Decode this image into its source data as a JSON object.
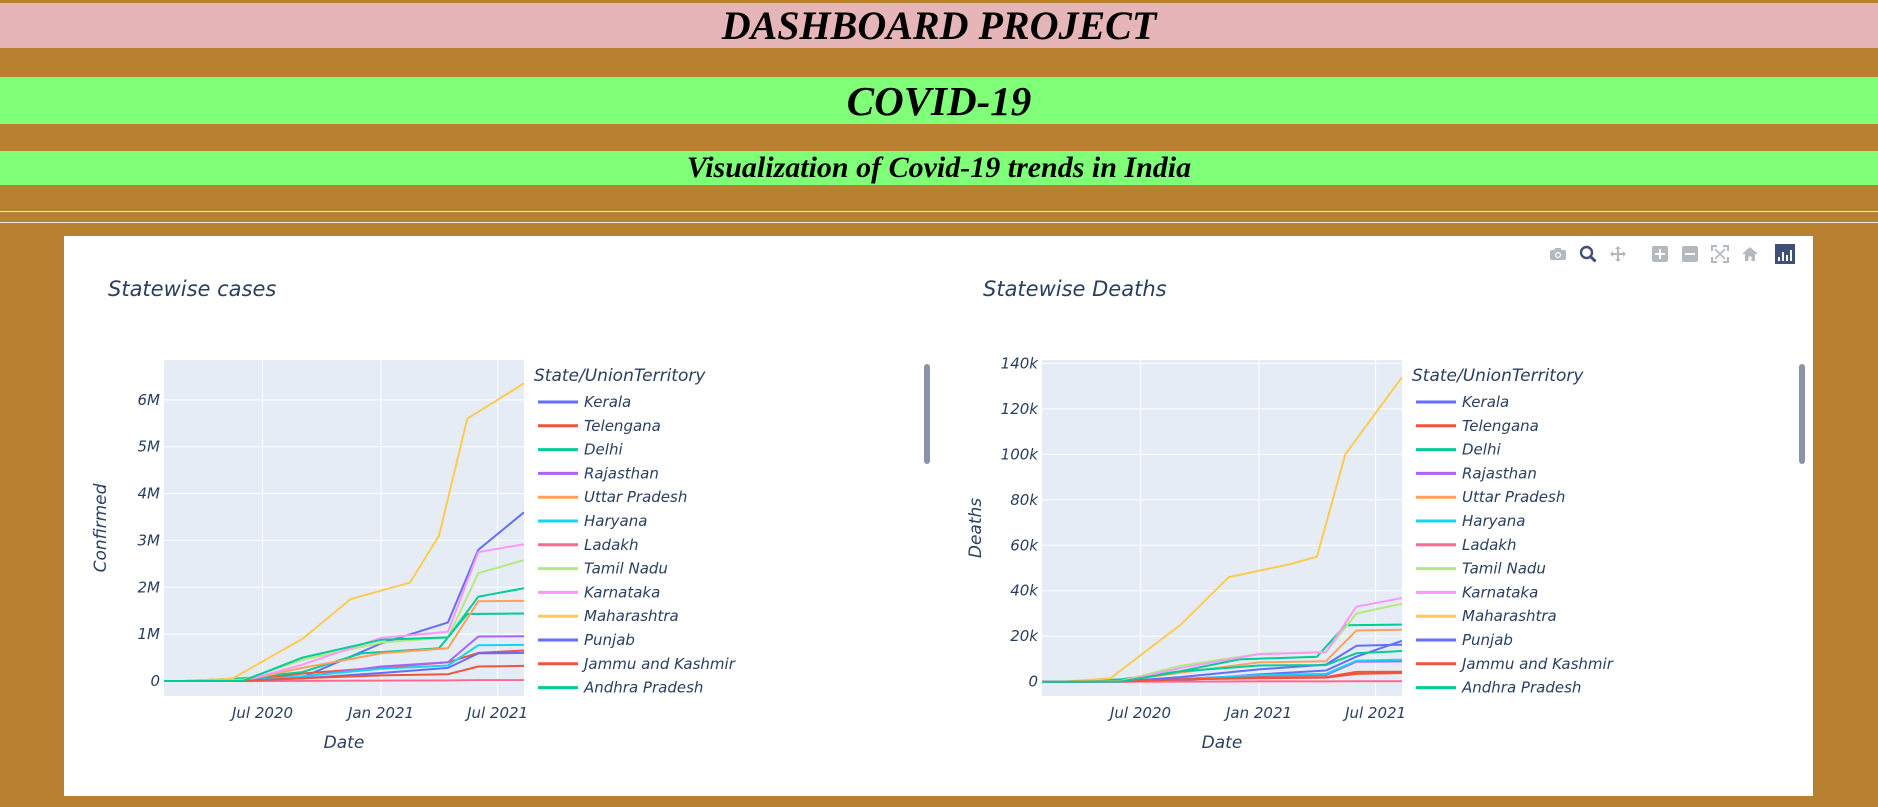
{
  "header": {
    "title": "DASHBOARD PROJECT",
    "covid": "COVID-19",
    "subtitle": "Visualization of Covid-19 trends in India"
  },
  "modebar": {
    "icons": [
      "camera-icon",
      "zoom-icon",
      "pan-icon",
      "zoom-in-icon",
      "zoom-out-icon",
      "autoscale-icon",
      "reset-home-icon",
      "plotly-logo-icon"
    ],
    "colors": {
      "inactive": "#b4b9c0",
      "active": "#3f4f75"
    }
  },
  "legend_colors": [
    "#636efa",
    "#ef553b",
    "#00cc96",
    "#ab63fa",
    "#ffa15a",
    "#19d3f3",
    "#ff6692",
    "#b6e880",
    "#ff97ff",
    "#fecb52",
    "#636efa",
    "#ef553b",
    "#00cc96"
  ],
  "chart_data": [
    {
      "type": "line",
      "title": "Statewise cases",
      "xlabel": "Date",
      "ylabel": "Confirmed",
      "x_ticks": [
        "Jul 2020",
        "Jan 2021",
        "Jul 2021"
      ],
      "y_ticks": [
        "0",
        "1M",
        "2M",
        "3M",
        "4M",
        "5M",
        "6M"
      ],
      "xlim": [
        "2020-01-30",
        "2021-08-11"
      ],
      "ylim": [
        -320000,
        6850000
      ],
      "legend_title": "State/UnionTerritory",
      "legend_placement": "right",
      "grid": true,
      "series": [
        {
          "name": "Kerala",
          "x": [
            "2020-01-30",
            "2020-06-01",
            "2020-09-01",
            "2021-01-01",
            "2021-04-15",
            "2021-06-01",
            "2021-08-11"
          ],
          "y": [
            1,
            2000,
            80000,
            800000,
            1250000,
            2800000,
            3600000
          ]
        },
        {
          "name": "Telengana",
          "x": [
            "2020-03-01",
            "2020-06-01",
            "2020-09-01",
            "2021-01-01",
            "2021-04-15",
            "2021-06-01",
            "2021-08-11"
          ],
          "y": [
            0,
            5000,
            160000,
            285000,
            400000,
            600000,
            650000
          ]
        },
        {
          "name": "Delhi",
          "x": [
            "2020-03-01",
            "2020-06-01",
            "2020-09-01",
            "2020-12-01",
            "2021-04-01",
            "2021-05-15",
            "2021-08-11"
          ],
          "y": [
            0,
            60000,
            190000,
            590000,
            700000,
            1430000,
            1440000
          ]
        },
        {
          "name": "Rajasthan",
          "x": [
            "2020-03-01",
            "2020-06-01",
            "2020-09-01",
            "2021-01-01",
            "2021-04-15",
            "2021-06-01",
            "2021-08-11"
          ],
          "y": [
            0,
            10000,
            90000,
            310000,
            400000,
            950000,
            955000
          ]
        },
        {
          "name": "Uttar Pradesh",
          "x": [
            "2020-03-01",
            "2020-06-01",
            "2020-09-01",
            "2021-01-01",
            "2021-04-15",
            "2021-06-01",
            "2021-08-11"
          ],
          "y": [
            0,
            12000,
            280000,
            590000,
            700000,
            1700000,
            1710000
          ]
        },
        {
          "name": "Haryana",
          "x": [
            "2020-03-01",
            "2020-06-01",
            "2020-09-01",
            "2021-01-01",
            "2021-04-15",
            "2021-06-01",
            "2021-08-11"
          ],
          "y": [
            0,
            6000,
            100000,
            260000,
            330000,
            765000,
            770000
          ]
        },
        {
          "name": "Ladakh",
          "x": [
            "2020-03-01",
            "2020-06-01",
            "2020-09-01",
            "2021-01-01",
            "2021-04-15",
            "2021-06-01",
            "2021-08-11"
          ],
          "y": [
            0,
            500,
            3000,
            9500,
            11000,
            19500,
            20300
          ]
        },
        {
          "name": "Tamil Nadu",
          "x": [
            "2020-03-01",
            "2020-06-01",
            "2020-09-01",
            "2021-01-01",
            "2021-04-15",
            "2021-06-01",
            "2021-08-11"
          ],
          "y": [
            0,
            25000,
            450000,
            820000,
            930000,
            2300000,
            2580000
          ]
        },
        {
          "name": "Karnataka",
          "x": [
            "2020-03-01",
            "2020-06-01",
            "2020-09-01",
            "2021-01-01",
            "2021-04-15",
            "2021-06-01",
            "2021-08-11"
          ],
          "y": [
            0,
            5000,
            350000,
            920000,
            1050000,
            2750000,
            2920000
          ]
        },
        {
          "name": "Maharashtra",
          "x": [
            "2020-03-01",
            "2020-05-15",
            "2020-09-01",
            "2020-11-15",
            "2021-02-15",
            "2021-04-01",
            "2021-05-15",
            "2021-08-11"
          ],
          "y": [
            0,
            50000,
            900000,
            1750000,
            2100000,
            3100000,
            5600000,
            6350000
          ]
        },
        {
          "name": "Punjab",
          "x": [
            "2020-03-01",
            "2020-06-01",
            "2020-09-01",
            "2021-01-01",
            "2021-04-15",
            "2021-06-01",
            "2021-08-11"
          ],
          "y": [
            0,
            3000,
            60000,
            170000,
            280000,
            590000,
            600000
          ]
        },
        {
          "name": "Jammu and Kashmir",
          "x": [
            "2020-03-01",
            "2020-06-01",
            "2020-09-01",
            "2021-01-01",
            "2021-04-15",
            "2021-06-01",
            "2021-08-11"
          ],
          "y": [
            0,
            3000,
            60000,
            120000,
            145000,
            310000,
            322000
          ]
        },
        {
          "name": "Andhra Pradesh",
          "x": [
            "2020-03-01",
            "2020-06-01",
            "2020-09-01",
            "2021-01-01",
            "2021-04-15",
            "2021-06-01",
            "2021-08-11"
          ],
          "y": [
            0,
            5000,
            500000,
            880000,
            930000,
            1800000,
            1980000
          ]
        }
      ]
    },
    {
      "type": "line",
      "title": "Statewise Deaths",
      "xlabel": "Date",
      "ylabel": "Deaths",
      "x_ticks": [
        "Jul 2020",
        "Jan 2021",
        "Jul 2021"
      ],
      "y_ticks": [
        "0",
        "20k",
        "40k",
        "60k",
        "80k",
        "100k",
        "120k",
        "140k"
      ],
      "xlim": [
        "2020-01-30",
        "2021-08-11"
      ],
      "ylim": [
        -6300,
        141500
      ],
      "legend_title": "State/UnionTerritory",
      "legend_placement": "right",
      "grid": true,
      "series": [
        {
          "name": "Kerala",
          "x": [
            "2020-01-30",
            "2020-06-01",
            "2020-09-01",
            "2021-01-01",
            "2021-04-15",
            "2021-06-01",
            "2021-08-11"
          ],
          "y": [
            0,
            20,
            500,
            3200,
            4900,
            11000,
            18000
          ]
        },
        {
          "name": "Telengana",
          "x": [
            "2020-03-01",
            "2020-06-01",
            "2020-09-01",
            "2021-01-01",
            "2021-04-15",
            "2021-06-01",
            "2021-08-11"
          ],
          "y": [
            0,
            200,
            1000,
            1550,
            1800,
            3400,
            3800
          ]
        },
        {
          "name": "Delhi",
          "x": [
            "2020-03-01",
            "2020-06-01",
            "2020-09-01",
            "2020-12-01",
            "2021-04-01",
            "2021-05-15",
            "2021-08-11"
          ],
          "y": [
            0,
            1000,
            4600,
            9800,
            11000,
            24800,
            25100
          ]
        },
        {
          "name": "Rajasthan",
          "x": [
            "2020-03-01",
            "2020-06-01",
            "2020-09-01",
            "2021-01-01",
            "2021-04-15",
            "2021-06-01",
            "2021-08-11"
          ],
          "y": [
            0,
            200,
            1200,
            2700,
            2900,
            8800,
            8950
          ]
        },
        {
          "name": "Uttar Pradesh",
          "x": [
            "2020-03-01",
            "2020-06-01",
            "2020-09-01",
            "2021-01-01",
            "2021-04-15",
            "2021-06-01",
            "2021-08-11"
          ],
          "y": [
            0,
            300,
            4000,
            8500,
            9000,
            22500,
            22800
          ]
        },
        {
          "name": "Haryana",
          "x": [
            "2020-03-01",
            "2020-06-01",
            "2020-09-01",
            "2021-01-01",
            "2021-04-15",
            "2021-06-01",
            "2021-08-11"
          ],
          "y": [
            0,
            100,
            1100,
            2900,
            3400,
            9200,
            9650
          ]
        },
        {
          "name": "Ladakh",
          "x": [
            "2020-03-01",
            "2020-06-01",
            "2020-09-01",
            "2021-01-01",
            "2021-04-15",
            "2021-06-01",
            "2021-08-11"
          ],
          "y": [
            0,
            1,
            40,
            130,
            140,
            200,
            207
          ]
        },
        {
          "name": "Tamil Nadu",
          "x": [
            "2020-03-01",
            "2020-06-01",
            "2020-09-01",
            "2021-01-01",
            "2021-04-15",
            "2021-06-01",
            "2021-08-11"
          ],
          "y": [
            0,
            300,
            7000,
            12200,
            13000,
            30000,
            34300
          ]
        },
        {
          "name": "Karnataka",
          "x": [
            "2020-03-01",
            "2020-06-01",
            "2020-09-01",
            "2021-01-01",
            "2021-04-15",
            "2021-06-01",
            "2021-08-11"
          ],
          "y": [
            0,
            100,
            6000,
            12100,
            13000,
            33000,
            36800
          ]
        },
        {
          "name": "Maharashtra",
          "x": [
            "2020-03-01",
            "2020-05-15",
            "2020-09-01",
            "2020-11-15",
            "2021-02-15",
            "2021-04-01",
            "2021-05-15",
            "2021-08-11"
          ],
          "y": [
            0,
            1500,
            25000,
            46000,
            51500,
            55000,
            100000,
            134000
          ]
        },
        {
          "name": "Punjab",
          "x": [
            "2020-03-01",
            "2020-06-01",
            "2020-09-01",
            "2021-01-01",
            "2021-04-15",
            "2021-06-01",
            "2021-08-11"
          ],
          "y": [
            0,
            100,
            2000,
            5400,
            7500,
            15800,
            16300
          ]
        },
        {
          "name": "Jammu and Kashmir",
          "x": [
            "2020-03-01",
            "2020-06-01",
            "2020-09-01",
            "2021-01-01",
            "2021-04-15",
            "2021-06-01",
            "2021-08-11"
          ],
          "y": [
            0,
            50,
            1000,
            1900,
            2000,
            4300,
            4380
          ]
        },
        {
          "name": "Andhra Pradesh",
          "x": [
            "2020-03-01",
            "2020-06-01",
            "2020-09-01",
            "2021-01-01",
            "2021-04-15",
            "2021-06-01",
            "2021-08-11"
          ],
          "y": [
            0,
            100,
            4500,
            7100,
            7300,
            12500,
            13500
          ]
        }
      ]
    }
  ]
}
